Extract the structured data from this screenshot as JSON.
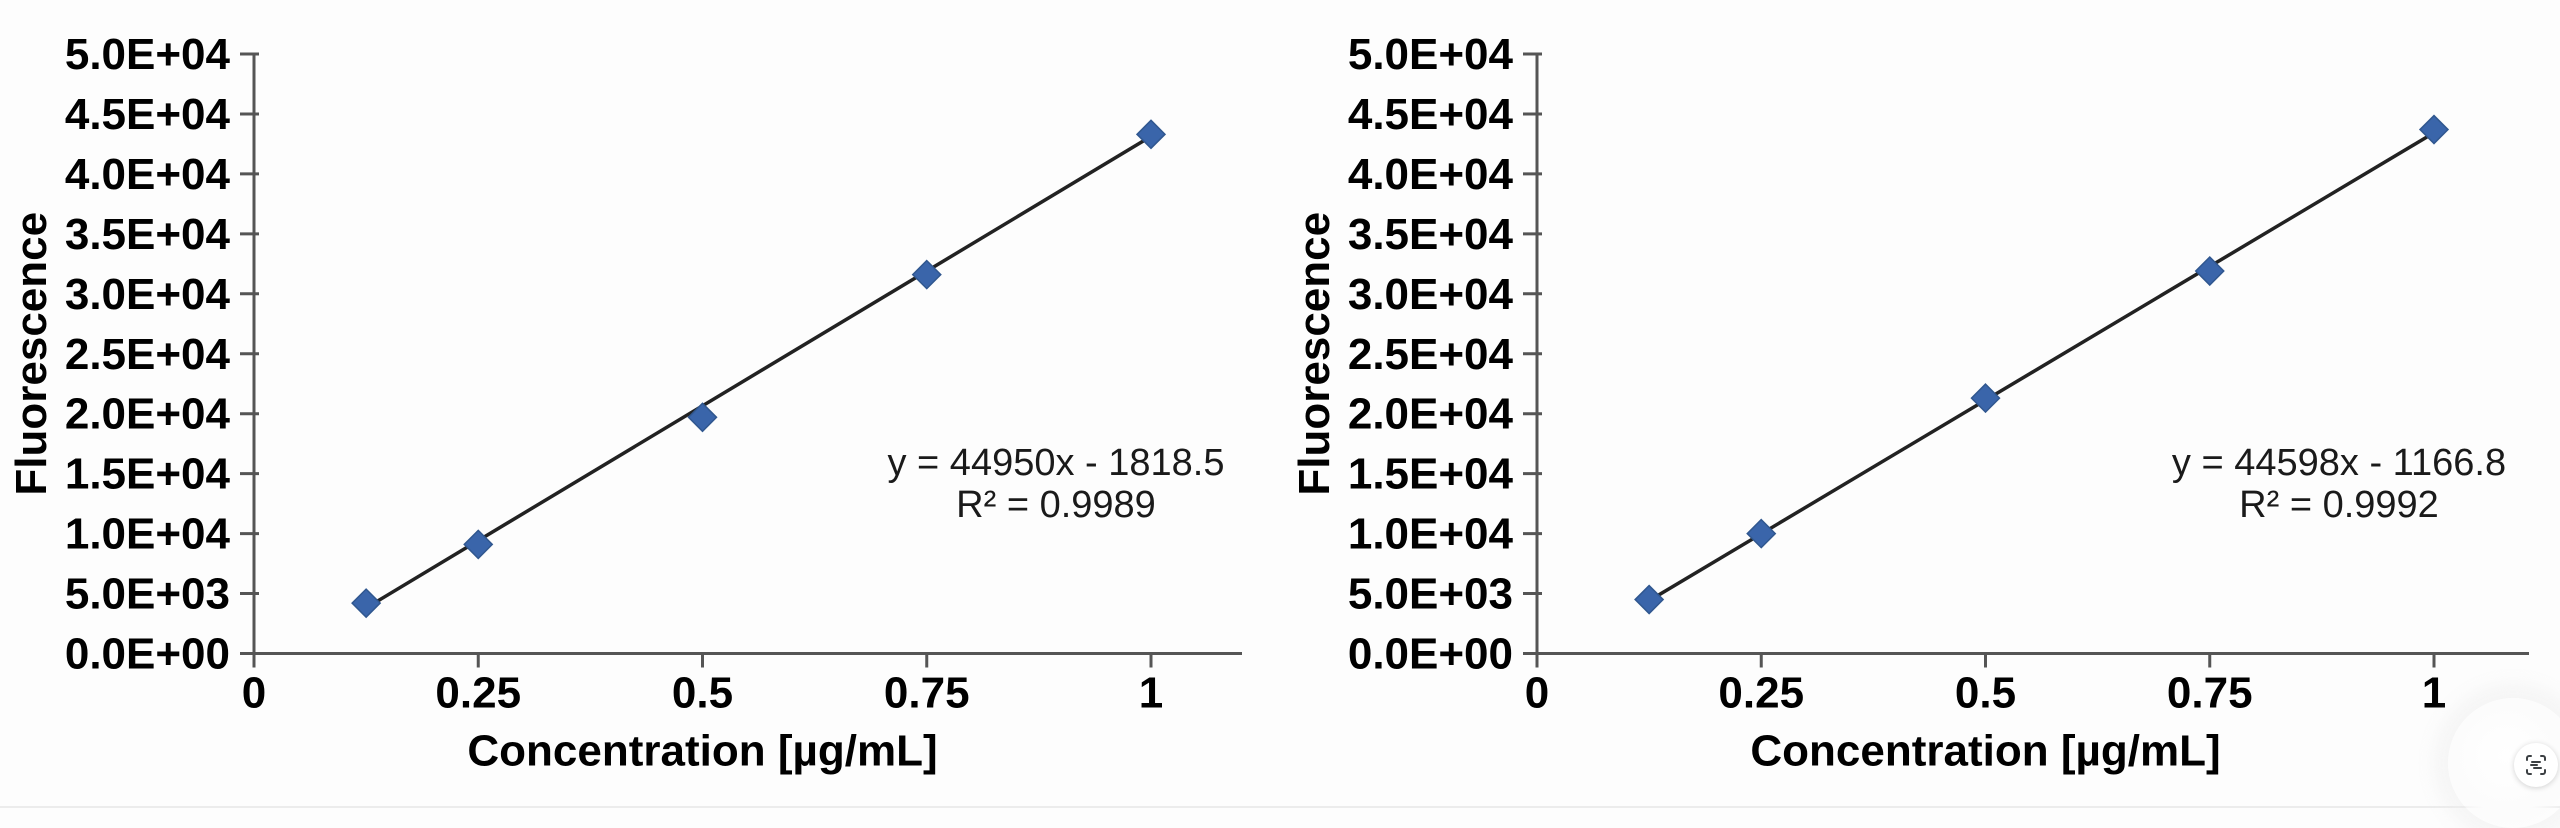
{
  "page": {
    "background": "#fdfdfd",
    "lens_button": {
      "icon": "text-scan-icon"
    }
  },
  "colors": {
    "marker": "#3a65aa",
    "marker_stroke": "#30578f",
    "trendline": "#222222",
    "axis": "#555555",
    "tick_text": "#000000",
    "annotation_text": "#1a1a1a"
  },
  "chart_data": [
    {
      "type": "scatter",
      "title": "",
      "xlabel": "Concentration [µg/mL]",
      "ylabel": "Fluorescence",
      "x": [
        0.125,
        0.25,
        0.5,
        0.75,
        1
      ],
      "y": [
        4200,
        9100,
        19700,
        31600,
        43300
      ],
      "trendline": {
        "slope": 44950,
        "intercept": -1818.5,
        "equation_label": "y = 44950x - 1818.5",
        "r_squared_label": "R² = 0.9989",
        "r_squared": 0.9989
      },
      "xlim": [
        0,
        1.1
      ],
      "ylim": [
        0,
        50000
      ],
      "x_ticks": [
        0,
        0.25,
        0.5,
        0.75,
        1
      ],
      "x_tick_labels": [
        "0",
        "0.25",
        "0.5",
        "0.75",
        "1"
      ],
      "y_ticks": [
        0,
        5000,
        10000,
        15000,
        20000,
        25000,
        30000,
        35000,
        40000,
        45000,
        50000
      ],
      "y_tick_labels": [
        "0.0E+00",
        "5.0E+03",
        "1.0E+04",
        "1.5E+04",
        "2.0E+04",
        "2.5E+04",
        "3.0E+04",
        "3.5E+04",
        "4.0E+04",
        "4.5E+04",
        "5.0E+04"
      ],
      "grid": false,
      "legend": "none",
      "marker": "diamond"
    },
    {
      "type": "scatter",
      "title": "",
      "xlabel": "Concentration [µg/mL]",
      "ylabel": "Fluorescence",
      "x": [
        0.125,
        0.25,
        0.5,
        0.75,
        1
      ],
      "y": [
        4500,
        10000,
        21300,
        31900,
        43700
      ],
      "trendline": {
        "slope": 44598,
        "intercept": -1166.8,
        "equation_label": "y = 44598x - 1166.8",
        "r_squared_label": "R² = 0.9992",
        "r_squared": 0.9992
      },
      "xlim": [
        0,
        1.1
      ],
      "ylim": [
        0,
        50000
      ],
      "x_ticks": [
        0,
        0.25,
        0.5,
        0.75,
        1
      ],
      "x_tick_labels": [
        "0",
        "0.25",
        "0.5",
        "0.75",
        "1"
      ],
      "y_ticks": [
        0,
        5000,
        10000,
        15000,
        20000,
        25000,
        30000,
        35000,
        40000,
        45000,
        50000
      ],
      "y_tick_labels": [
        "0.0E+00",
        "5.0E+03",
        "1.0E+04",
        "1.5E+04",
        "2.0E+04",
        "2.5E+04",
        "3.0E+04",
        "3.5E+04",
        "4.0E+04",
        "4.5E+04",
        "5.0E+04"
      ],
      "grid": false,
      "legend": "none",
      "marker": "diamond"
    }
  ]
}
